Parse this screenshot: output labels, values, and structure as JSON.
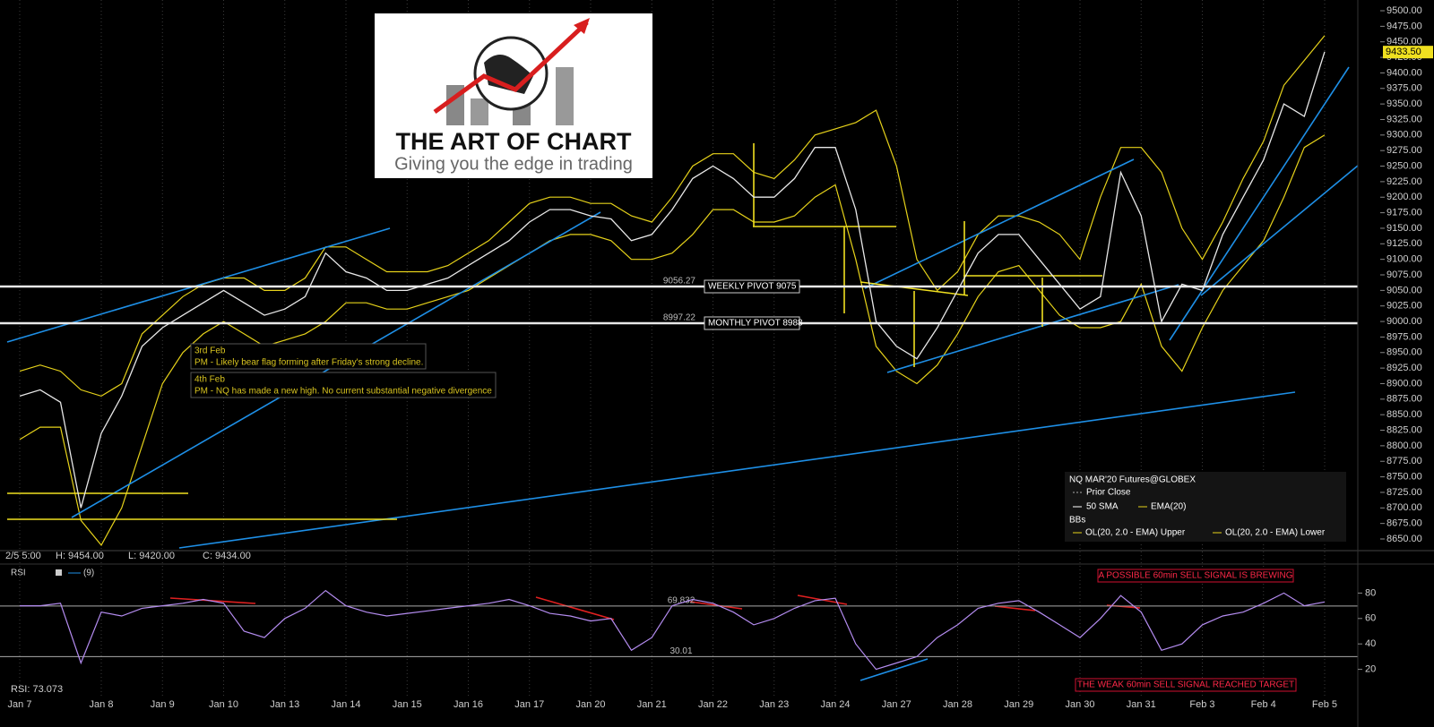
{
  "logo": {
    "title": "THE ART OF CHART",
    "tagline": "Giving you the edge in trading"
  },
  "chart_data": {
    "type": "line",
    "instrument": "NQ MAR'20 Futures@GLOBEX",
    "bar_info": {
      "time": "2/5 5:00",
      "high": "H: 9454.00",
      "low": "L: 9420.00",
      "close": "C: 9434.00"
    },
    "categories": [
      "Jan 7",
      null,
      null,
      null,
      "Jan 8",
      null,
      null,
      "Jan 9",
      null,
      null,
      "Jan 10",
      null,
      null,
      "Jan 13",
      null,
      null,
      "Jan 14",
      null,
      null,
      "Jan 15",
      null,
      null,
      "Jan 16",
      null,
      null,
      "Jan 17",
      null,
      null,
      "Jan 20",
      null,
      null,
      "Jan 21",
      null,
      null,
      "Jan 22",
      null,
      null,
      "Jan 23",
      null,
      null,
      "Jan 24",
      null,
      null,
      "Jan 27",
      null,
      null,
      "Jan 28",
      null,
      null,
      "Jan 29",
      null,
      null,
      "Jan 30",
      null,
      null,
      "Jan 31",
      null,
      null,
      "Feb 3",
      null,
      null,
      "Feb 4",
      null,
      null,
      "Feb 5"
    ],
    "values": [
      8880,
      8890,
      8870,
      8700,
      8820,
      8880,
      8960,
      8990,
      9010,
      9030,
      9050,
      9030,
      9010,
      9020,
      9040,
      9110,
      9080,
      9070,
      9050,
      9050,
      9060,
      9070,
      9090,
      9110,
      9130,
      9160,
      9180,
      9180,
      9170,
      9165,
      9130,
      9140,
      9180,
      9230,
      9250,
      9230,
      9200,
      9200,
      9230,
      9280,
      9280,
      9180,
      9000,
      8960,
      8940,
      8990,
      9050,
      9110,
      9140,
      9140,
      9100,
      9060,
      9020,
      9040,
      9240,
      9170,
      9000,
      9060,
      9050,
      9140,
      9200,
      9260,
      9350,
      9330,
      9434
    ],
    "color": "#e8e8e8",
    "series": [
      {
        "name": "OL(20, 2.0 - EMA) Upper",
        "color": "#e6d21a",
        "values": [
          8920,
          8930,
          8920,
          8890,
          8880,
          8900,
          8980,
          9010,
          9040,
          9060,
          9070,
          9070,
          9050,
          9050,
          9070,
          9120,
          9120,
          9100,
          9080,
          9080,
          9080,
          9090,
          9110,
          9130,
          9160,
          9190,
          9200,
          9200,
          9190,
          9190,
          9170,
          9160,
          9200,
          9250,
          9270,
          9270,
          9240,
          9230,
          9260,
          9300,
          9310,
          9320,
          9340,
          9250,
          9100,
          9050,
          9080,
          9140,
          9170,
          9170,
          9160,
          9140,
          9100,
          9200,
          9280,
          9280,
          9240,
          9150,
          9100,
          9160,
          9230,
          9290,
          9380,
          9420,
          9460
        ]
      },
      {
        "name": "OL(20, 2.0 - EMA) Lower",
        "color": "#e6d21a",
        "values": [
          8810,
          8830,
          8830,
          8680,
          8640,
          8700,
          8800,
          8900,
          8950,
          8980,
          9000,
          8980,
          8960,
          8970,
          8980,
          9000,
          9030,
          9030,
          9020,
          9020,
          9030,
          9040,
          9050,
          9070,
          9090,
          9110,
          9130,
          9140,
          9140,
          9130,
          9100,
          9100,
          9110,
          9140,
          9180,
          9180,
          9160,
          9160,
          9170,
          9200,
          9220,
          9100,
          8960,
          8920,
          8900,
          8930,
          8980,
          9040,
          9080,
          9090,
          9050,
          9010,
          8990,
          8990,
          9000,
          9060,
          8960,
          8920,
          8990,
          9050,
          9090,
          9130,
          9200,
          9280,
          9300
        ]
      }
    ],
    "legend_items": [
      "Prior Close",
      "50 SMA",
      "EMA(20)"
    ],
    "legend_group": "BBs",
    "ylim": [
      8635.6,
      9517.3
    ],
    "yticks": [
      {
        "value": 8650,
        "label": "8650.00"
      },
      {
        "value": 8675,
        "label": "8675.00"
      },
      {
        "value": 8700,
        "label": "8700.00"
      },
      {
        "value": 8725,
        "label": "8725.00"
      },
      {
        "value": 8750,
        "label": "8750.00"
      },
      {
        "value": 8775,
        "label": "8775.00"
      },
      {
        "value": 8800,
        "label": "8800.00"
      },
      {
        "value": 8825,
        "label": "8825.00"
      },
      {
        "value": 8850,
        "label": "8850.00"
      },
      {
        "value": 8875,
        "label": "8875.00"
      },
      {
        "value": 8900,
        "label": "8900.00"
      },
      {
        "value": 8925,
        "label": "8925.00"
      },
      {
        "value": 8950,
        "label": "8950.00"
      },
      {
        "value": 8975,
        "label": "8975.00"
      },
      {
        "value": 9000,
        "label": "9000.00"
      },
      {
        "value": 9025,
        "label": "9025.00"
      },
      {
        "value": 9050,
        "label": "9050.00"
      },
      {
        "value": 9075,
        "label": "9075.00"
      },
      {
        "value": 9100,
        "label": "9100.00"
      },
      {
        "value": 9125,
        "label": "9125.00"
      },
      {
        "value": 9150,
        "label": "9150.00"
      },
      {
        "value": 9175,
        "label": "9175.00"
      },
      {
        "value": 9200,
        "label": "9200.00"
      },
      {
        "value": 9225,
        "label": "9225.00"
      },
      {
        "value": 9250,
        "label": "9250.00"
      },
      {
        "value": 9275,
        "label": "9275.00"
      },
      {
        "value": 9300,
        "label": "9300.00"
      },
      {
        "value": 9325,
        "label": "9325.00"
      },
      {
        "value": 9350,
        "label": "9350.00"
      },
      {
        "value": 9375,
        "label": "9375.00"
      },
      {
        "value": 9400,
        "label": "9400.00"
      },
      {
        "value": 9425,
        "label": "9425.00"
      },
      {
        "value": 9450,
        "label": "9450.00"
      },
      {
        "value": 9475,
        "label": "9475.00"
      },
      {
        "value": 9500,
        "label": "9500.00"
      }
    ],
    "last_price": {
      "value": 9433.5,
      "label": "9433.50"
    },
    "pivots": [
      {
        "name": "WEEKLY PIVOT 9075",
        "value": 9056.27
      },
      {
        "name": "MONTHLY PIVOT 8988",
        "value": 8997.22
      }
    ],
    "annotations": [
      {
        "title": "3rd Feb",
        "text": "PM - Likely bear flag forming after Friday's strong decline."
      },
      {
        "title": "4th Feb",
        "text": "PM - NQ has made a new high. No current substantial negative divergence"
      }
    ],
    "rsi": {
      "label": "RSI",
      "period": "(9)",
      "readout": "RSI: 73.073",
      "color": "#b48cf0",
      "values": [
        70,
        70,
        72,
        25,
        65,
        62,
        68,
        70,
        72,
        75,
        72,
        50,
        45,
        60,
        68,
        82,
        70,
        65,
        62,
        64,
        66,
        68,
        70,
        72,
        75,
        70,
        64,
        62,
        58,
        60,
        35,
        45,
        70,
        75,
        72,
        65,
        55,
        60,
        68,
        74,
        76,
        40,
        20,
        25,
        30,
        45,
        55,
        68,
        72,
        74,
        65,
        55,
        45,
        60,
        78,
        65,
        35,
        40,
        55,
        62,
        65,
        72,
        80,
        70,
        73
      ],
      "ylim": [
        0,
        100
      ],
      "yticks": [
        20,
        40,
        60,
        80
      ],
      "levels": [
        69.832,
        30.01
      ],
      "notes": [
        "A POSSIBLE 60min SELL SIGNAL IS BREWING",
        "THE WEAK 60min SELL SIGNAL REACHED TARGET"
      ]
    }
  }
}
